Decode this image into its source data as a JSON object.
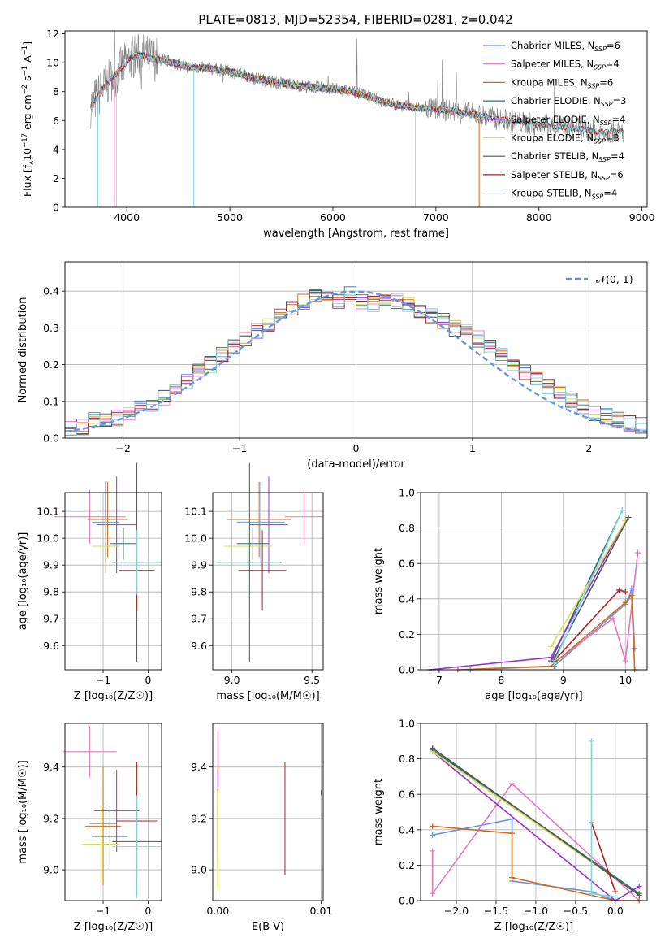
{
  "figure": {
    "title": "PLATE=0813, MJD=52354, FIBERID=0281, z=0.042"
  },
  "legend_palette": {
    "Chabrier MILES": "#6495ed",
    "Salpeter MILES": "#e377c2",
    "Kroupa MILES": "#d2691e",
    "Chabrier ELODIE": "#2f6f6f",
    "Salpeter ELODIE": "#9932cc",
    "Kroupa ELODIE": "#d4e157",
    "Chabrier STELIB": "#555555",
    "Salpeter STELIB": "#b22222",
    "Kroupa STELIB": "#7fd8e0",
    "data": "#7f7f7f",
    "normal": "#6495ed"
  },
  "chart_data": [
    {
      "id": "spectrum",
      "type": "line",
      "xlabel": "wavelength [Angstrom, rest frame]",
      "ylabel_parts": [
        "Flux [f",
        "λ",
        "10",
        "−17",
        " erg cm",
        "−2",
        " s",
        "−1",
        " A",
        "−1",
        "]"
      ],
      "xlim": [
        3400,
        9050
      ],
      "ylim": [
        0,
        12.2
      ],
      "xticks": [
        4000,
        5000,
        6000,
        7000,
        8000,
        9000
      ],
      "yticks": [
        0,
        2,
        4,
        6,
        8,
        10,
        12
      ],
      "grid": false,
      "legend_position": "top-right",
      "data_anchors": {
        "x": [
          3650,
          3800,
          3950,
          4050,
          4150,
          4250,
          4400,
          4600,
          4800,
          5000,
          5200,
          5400,
          5600,
          5800,
          6000,
          6200,
          6400,
          6600,
          6800,
          7000,
          7200,
          7400,
          7600,
          7800,
          8000,
          8200,
          8400,
          8600,
          8820
        ],
        "y": [
          7.0,
          8.5,
          9.6,
          10.4,
          10.5,
          10.3,
          10.1,
          9.7,
          9.6,
          9.4,
          9.0,
          8.7,
          8.5,
          8.3,
          8.2,
          8.0,
          7.5,
          7.1,
          6.9,
          6.8,
          6.6,
          6.4,
          6.1,
          5.9,
          5.7,
          5.6,
          5.4,
          5.2,
          5.2
        ]
      },
      "legend": [
        {
          "label": "Chabrier MILES, N",
          "sub": "SSP",
          "suffix": "=6",
          "color": "#6495ed"
        },
        {
          "label": "Salpeter MILES, N",
          "sub": "SSP",
          "suffix": "=4",
          "color": "#e377c2"
        },
        {
          "label": "Kroupa MILES, N",
          "sub": "SSP",
          "suffix": "=6",
          "color": "#d2691e"
        },
        {
          "label": "Chabrier ELODIE, N",
          "sub": "SSP",
          "suffix": "=3",
          "color": "#2f6f6f"
        },
        {
          "label": "Salpeter ELODIE, N",
          "sub": "SSP",
          "suffix": "=4",
          "color": "#9932cc"
        },
        {
          "label": "Kroupa ELODIE, N",
          "sub": "SSP",
          "suffix": "=3",
          "color": "#d4e157"
        },
        {
          "label": "Chabrier STELIB, N",
          "sub": "SSP",
          "suffix": "=4",
          "color": "#555555"
        },
        {
          "label": "Salpeter STELIB, N",
          "sub": "SSP",
          "suffix": "=6",
          "color": "#b22222"
        },
        {
          "label": "Kroupa STELIB, N",
          "sub": "SSP",
          "suffix": "=4",
          "color": "#7fd8e0"
        }
      ]
    },
    {
      "id": "residuals",
      "type": "line",
      "xlabel": "(data-model)/error",
      "ylabel": "Normed distribution",
      "xlim": [
        -2.5,
        2.5
      ],
      "ylim": [
        0,
        0.48
      ],
      "xticks": [
        -2,
        -1,
        0,
        1,
        2
      ],
      "yticks": [
        0.0,
        0.1,
        0.2,
        0.3,
        0.4
      ],
      "grid": true,
      "legend_position": "top-right",
      "legend_label": "𝒩(0, 1)",
      "bin_width": 0.1,
      "hist_shape": [
        0.025,
        0.03,
        0.05,
        0.05,
        0.055,
        0.065,
        0.08,
        0.095,
        0.11,
        0.135,
        0.155,
        0.18,
        0.2,
        0.225,
        0.25,
        0.27,
        0.29,
        0.31,
        0.33,
        0.35,
        0.37,
        0.39,
        0.38,
        0.375,
        0.39,
        0.37,
        0.365,
        0.38,
        0.375,
        0.36,
        0.35,
        0.33,
        0.32,
        0.3,
        0.29,
        0.27,
        0.245,
        0.225,
        0.2,
        0.18,
        0.16,
        0.14,
        0.12,
        0.1,
        0.085,
        0.07,
        0.06,
        0.05,
        0.04,
        0.035
      ],
      "series_names": [
        "Chabrier MILES",
        "Salpeter MILES",
        "Kroupa MILES",
        "Chabrier ELODIE",
        "Salpeter ELODIE",
        "Kroupa ELODIE",
        "Chabrier STELIB",
        "Salpeter STELIB",
        "Kroupa STELIB"
      ]
    },
    {
      "id": "age_vs_Z",
      "type": "scatter",
      "xlabel": "Z [log₁₀(Z/Z☉)]",
      "ylabel": "age  [log₁₀(age/yr)]",
      "xlim": [
        -1.85,
        0.3
      ],
      "ylim": [
        9.51,
        10.17
      ],
      "xticks": [
        -1,
        0
      ],
      "yticks": [
        9.6,
        9.7,
        9.8,
        9.9,
        10.0,
        10.1
      ],
      "grid": true,
      "points": [
        {
          "series": "Chabrier MILES",
          "x": -0.95,
          "xerr": 0.3,
          "y": 10.06,
          "yerr": 0.15
        },
        {
          "series": "Salpeter MILES",
          "x": -1.3,
          "xerr": 0.8,
          "y": 10.08,
          "yerr": 0.1
        },
        {
          "series": "Kroupa MILES",
          "x": -0.9,
          "xerr": 0.45,
          "y": 10.07,
          "yerr": 0.14
        },
        {
          "series": "Chabrier ELODIE",
          "x": -0.55,
          "xerr": 0.3,
          "y": 9.98,
          "yerr": 0.06
        },
        {
          "series": "Salpeter ELODIE",
          "x": -0.7,
          "xerr": 0.45,
          "y": 10.05,
          "yerr": 0.18
        },
        {
          "series": "Kroupa ELODIE",
          "x": -0.95,
          "xerr": 0.3,
          "y": 9.97,
          "yerr": 0.1
        },
        {
          "series": "Chabrier STELIB",
          "x": -0.25,
          "xerr": 0.55,
          "y": 9.91,
          "yerr": 0.37
        },
        {
          "series": "Salpeter STELIB",
          "x": -0.25,
          "xerr": 0.4,
          "y": 9.88,
          "yerr": 0.15
        },
        {
          "series": "Kroupa STELIB",
          "x": -0.25,
          "xerr": 0.55,
          "y": 9.91,
          "yerr": 0.12
        }
      ]
    },
    {
      "id": "age_vs_mass",
      "type": "scatter",
      "xlabel": "mass [log₁₀(M/M☉)]",
      "ylabel": "",
      "xlim": [
        8.88,
        9.57
      ],
      "ylim": [
        9.51,
        10.17
      ],
      "xticks": [
        9.0,
        9.5
      ],
      "yticks": [
        9.6,
        9.7,
        9.8,
        9.9,
        10.0,
        10.1
      ],
      "grid": true,
      "points": [
        {
          "series": "Chabrier MILES",
          "x": 9.18,
          "xerr": 0.15,
          "y": 10.06,
          "yerr": 0.15
        },
        {
          "series": "Salpeter MILES",
          "x": 9.45,
          "xerr": 0.12,
          "y": 10.08,
          "yerr": 0.1
        },
        {
          "series": "Kroupa MILES",
          "x": 9.17,
          "xerr": 0.2,
          "y": 10.07,
          "yerr": 0.14
        },
        {
          "series": "Chabrier ELODIE",
          "x": 9.13,
          "xerr": 0.1,
          "y": 9.98,
          "yerr": 0.06
        },
        {
          "series": "Salpeter ELODIE",
          "x": 9.23,
          "xerr": 0.12,
          "y": 10.05,
          "yerr": 0.18
        },
        {
          "series": "Kroupa ELODIE",
          "x": 9.1,
          "xerr": 0.15,
          "y": 9.97,
          "yerr": 0.1
        },
        {
          "series": "Chabrier STELIB",
          "x": 9.11,
          "xerr": 0.2,
          "y": 9.91,
          "yerr": 0.37
        },
        {
          "series": "Salpeter STELIB",
          "x": 9.19,
          "xerr": 0.15,
          "y": 9.88,
          "yerr": 0.15
        },
        {
          "series": "Kroupa STELIB",
          "x": 9.1,
          "xerr": 0.2,
          "y": 9.91,
          "yerr": 0.12
        }
      ]
    },
    {
      "id": "mass_weight_vs_age",
      "type": "line",
      "xlabel": "age  [log₁₀(age/yr)]",
      "ylabel": "mass weight",
      "xlim": [
        6.7,
        10.35
      ],
      "ylim": [
        0,
        1.0
      ],
      "xticks": [
        7,
        8,
        9,
        10
      ],
      "yticks": [
        0.0,
        0.2,
        0.4,
        0.6,
        0.8,
        1.0
      ],
      "grid": true,
      "series": [
        {
          "name": "Chabrier MILES",
          "x": [
            7.5,
            8.85,
            10.0,
            10.05,
            10.1,
            10.15
          ],
          "y": [
            0.0,
            0.02,
            0.37,
            0.4,
            0.46,
            0.12
          ]
        },
        {
          "name": "Salpeter MILES",
          "x": [
            8.85,
            9.8,
            10.0,
            10.2
          ],
          "y": [
            0.04,
            0.29,
            0.05,
            0.66
          ]
        },
        {
          "name": "Kroupa MILES",
          "x": [
            7.3,
            8.8,
            10.0,
            10.1,
            10.15
          ],
          "y": [
            0.0,
            0.02,
            0.38,
            0.42,
            0.0
          ]
        },
        {
          "name": "Chabrier ELODIE",
          "x": [
            8.8,
            9.95
          ],
          "y": [
            0.05,
            0.9
          ]
        },
        {
          "name": "Salpeter ELODIE",
          "x": [
            6.85,
            8.8,
            10.0
          ],
          "y": [
            0.0,
            0.07,
            0.84
          ]
        },
        {
          "name": "Kroupa ELODIE",
          "x": [
            8.8,
            10.0
          ],
          "y": [
            0.13,
            0.84
          ]
        },
        {
          "name": "Chabrier STELIB",
          "x": [
            8.85,
            10.05
          ],
          "y": [
            0.06,
            0.86
          ]
        },
        {
          "name": "Salpeter STELIB",
          "x": [
            8.85,
            9.9,
            10.0
          ],
          "y": [
            0.05,
            0.45,
            0.44
          ]
        },
        {
          "name": "Kroupa STELIB",
          "x": [
            8.85,
            9.95
          ],
          "y": [
            0.04,
            0.9
          ]
        }
      ]
    },
    {
      "id": "mass_vs_Z",
      "type": "scatter",
      "xlabel": "Z [log₁₀(Z/Z☉)]",
      "ylabel": "mass [log₁₀(M/M☉)]",
      "xlim": [
        -1.85,
        0.3
      ],
      "ylim": [
        8.88,
        9.57
      ],
      "xticks": [
        -1,
        0
      ],
      "yticks": [
        9.0,
        9.2,
        9.4
      ],
      "grid": true,
      "points": [
        {
          "series": "Chabrier MILES",
          "x": -1.0,
          "xerr": 0.3,
          "y": 9.18,
          "yerr": 0.15
        },
        {
          "series": "Salpeter MILES",
          "x": -1.3,
          "xerr": 0.6,
          "y": 9.46,
          "yerr": 0.1
        },
        {
          "series": "Kroupa MILES",
          "x": -1.0,
          "xerr": 0.4,
          "y": 9.17,
          "yerr": 0.23
        },
        {
          "series": "Chabrier ELODIE",
          "x": -0.85,
          "xerr": 0.4,
          "y": 9.13,
          "yerr": 0.12
        },
        {
          "series": "Salpeter ELODIE",
          "x": -0.7,
          "xerr": 0.5,
          "y": 9.23,
          "yerr": 0.16
        },
        {
          "series": "Kroupa ELODIE",
          "x": -1.05,
          "xerr": 0.4,
          "y": 9.1,
          "yerr": 0.15
        },
        {
          "series": "Chabrier STELIB",
          "x": -0.25,
          "xerr": 0.55,
          "y": 9.11,
          "yerr": 0.21
        },
        {
          "series": "Salpeter STELIB",
          "x": -0.25,
          "xerr": 0.45,
          "y": 9.19,
          "yerr": 0.23
        },
        {
          "series": "Kroupa STELIB",
          "x": -0.25,
          "xerr": 0.55,
          "y": 9.09,
          "yerr": 0.2
        }
      ]
    },
    {
      "id": "mass_vs_ebv",
      "type": "scatter",
      "xlabel": "E(B-V)",
      "ylabel": "",
      "xlim": [
        -0.0005,
        0.0102
      ],
      "ylim": [
        8.88,
        9.57
      ],
      "xticks": [
        0.0,
        0.01
      ],
      "yticks": [
        9.0,
        9.2,
        9.4
      ],
      "grid": true,
      "points": [
        {
          "series": "Chabrier MILES",
          "x": 0.0,
          "y": 9.18,
          "yerr": 0.15
        },
        {
          "series": "Salpeter MILES",
          "x": 0.0,
          "y": 9.46,
          "yerr": 0.08
        },
        {
          "series": "Kroupa MILES",
          "x": 0.0,
          "y": 9.17,
          "yerr": 0.23
        },
        {
          "series": "Chabrier ELODIE",
          "x": 0.0,
          "y": 9.13,
          "yerr": 0.12
        },
        {
          "series": "Salpeter ELODIE",
          "x": 0.0,
          "y": 9.23,
          "yerr": 0.16
        },
        {
          "series": "Kroupa ELODIE",
          "x": 0.0,
          "y": 9.12,
          "yerr": 0.2
        },
        {
          "series": "Chabrier STELIB",
          "x": 0.01,
          "y": 9.11,
          "yerr": 0.2
        },
        {
          "series": "Salpeter STELIB",
          "x": 0.0065,
          "y": 9.2,
          "yerr": 0.22
        },
        {
          "series": "Kroupa STELIB",
          "x": 0.01,
          "y": 9.09,
          "yerr": 0.2
        }
      ]
    },
    {
      "id": "mass_weight_vs_Z",
      "type": "line",
      "xlabel": "Z [log₁₀(Z/Z☉)]",
      "ylabel": "mass weight",
      "xlim": [
        -2.45,
        0.4
      ],
      "ylim": [
        0,
        1.0
      ],
      "xticks": [
        -2.0,
        -1.5,
        -1.0,
        -0.5,
        0.0
      ],
      "yticks": [
        0.0,
        0.2,
        0.4,
        0.6,
        0.8,
        1.0
      ],
      "grid": true,
      "series": [
        {
          "name": "Chabrier MILES",
          "x": [
            -2.3,
            -1.3,
            -1.3,
            -0.3,
            0.0
          ],
          "y": [
            0.37,
            0.46,
            0.11,
            0.05,
            0.0
          ]
        },
        {
          "name": "Salpeter MILES",
          "x": [
            -2.3,
            -2.3,
            -1.3,
            0.3
          ],
          "y": [
            0.28,
            0.04,
            0.66,
            0.0
          ]
        },
        {
          "name": "Kroupa MILES",
          "x": [
            -2.3,
            -1.3,
            -1.3,
            0.0,
            0.3
          ],
          "y": [
            0.42,
            0.38,
            0.13,
            0.0,
            0.0
          ]
        },
        {
          "name": "Chabrier ELODIE",
          "x": [
            -2.3,
            0.3
          ],
          "y": [
            0.85,
            0.04
          ]
        },
        {
          "name": "Salpeter ELODIE",
          "x": [
            -2.3,
            0.0,
            0.3
          ],
          "y": [
            0.84,
            0.0,
            0.08
          ]
        },
        {
          "name": "Kroupa ELODIE",
          "x": [
            -2.3,
            0.3
          ],
          "y": [
            0.84,
            0.03
          ]
        },
        {
          "name": "Chabrier STELIB",
          "x": [
            -2.3,
            0.3
          ],
          "y": [
            0.86,
            0.03
          ]
        },
        {
          "name": "Salpeter STELIB",
          "x": [
            -0.3,
            0.0
          ],
          "y": [
            0.44,
            0.05
          ]
        },
        {
          "name": "Kroupa STELIB",
          "x": [
            -0.3,
            -0.3,
            0.0
          ],
          "y": [
            0.9,
            0.04,
            0.02
          ]
        }
      ]
    }
  ]
}
